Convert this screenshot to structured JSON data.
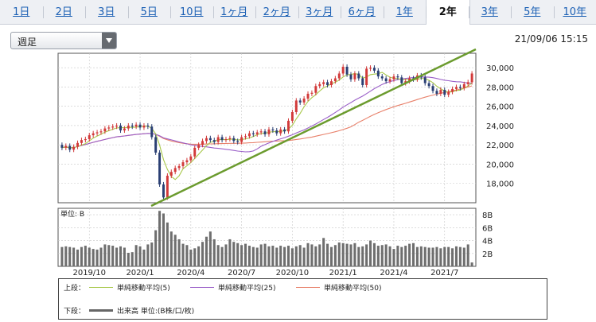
{
  "tabs": [
    {
      "label": "1日",
      "active": false
    },
    {
      "label": "2日",
      "active": false
    },
    {
      "label": "3日",
      "active": false
    },
    {
      "label": "5日",
      "active": false
    },
    {
      "label": "10日",
      "active": false
    },
    {
      "label": "1ヶ月",
      "active": false
    },
    {
      "label": "2ヶ月",
      "active": false
    },
    {
      "label": "3ヶ月",
      "active": false
    },
    {
      "label": "6ヶ月",
      "active": false
    },
    {
      "label": "1年",
      "active": false
    },
    {
      "label": "2年",
      "active": true
    },
    {
      "label": "3年",
      "active": false
    },
    {
      "label": "5年",
      "active": false
    },
    {
      "label": "10年",
      "active": false
    }
  ],
  "period_select": {
    "value": "週足"
  },
  "timestamp": "21/09/06 15:15",
  "legend": {
    "upper_label": "上段：",
    "lower_label": "下段：",
    "ma5_label": "単純移動平均(5)",
    "ma25_label": "単純移動平均(25)",
    "ma50_label": "単純移動平均(50)",
    "volume_label": "出来高 単位:(B株/口/枚)"
  },
  "colors": {
    "up": "#d23a3a",
    "down": "#2a3f73",
    "ma5": "#a8c84a",
    "ma25": "#9a5fc8",
    "ma50": "#e8806a",
    "trendline": "#6b9b2e",
    "volume": "#6e6e6e"
  },
  "chart_data": [
    {
      "type": "candlestick",
      "xlabel": "",
      "ylabel": "",
      "ylim": [
        16000,
        31500
      ],
      "yticks": [
        18000,
        20000,
        22000,
        24000,
        26000,
        28000,
        30000
      ],
      "ytick_labels": [
        "18,000",
        "20,000",
        "22,000",
        "24,000",
        "26,000",
        "28,000",
        "30,000"
      ],
      "xtick_labels": [
        "2019/10",
        "2020/1",
        "2020/4",
        "2020/7",
        "2020/10",
        "2021/1",
        "2021/4",
        "2021/7"
      ],
      "xtick_index": [
        7,
        20,
        33,
        46,
        59,
        72,
        85,
        98
      ],
      "close": [
        21700,
        21900,
        21500,
        21800,
        22200,
        22500,
        22600,
        23000,
        23200,
        23300,
        23400,
        23700,
        23800,
        23900,
        24000,
        23500,
        23700,
        24000,
        23900,
        24100,
        23800,
        24000,
        23900,
        22800,
        21200,
        17900,
        16550,
        18800,
        19200,
        19600,
        19800,
        20200,
        20400,
        20800,
        21700,
        22000,
        22400,
        22700,
        22500,
        22300,
        22800,
        22500,
        22600,
        22700,
        22400,
        22300,
        22800,
        22900,
        23200,
        23100,
        23300,
        23400,
        23100,
        23600,
        23500,
        23200,
        23600,
        23400,
        24500,
        25400,
        26600,
        26400,
        26800,
        27300,
        27400,
        28100,
        28300,
        28500,
        28200,
        28600,
        28900,
        29400,
        30100,
        29300,
        28800,
        29400,
        28900,
        28200,
        29900,
        30000,
        29700,
        29100,
        28900,
        28600,
        28800,
        29100,
        29000,
        28400,
        28600,
        28900,
        28800,
        29200,
        29000,
        28400,
        28100,
        27600,
        27300,
        27700,
        27200,
        27500,
        27800,
        28000,
        27900,
        28300,
        28500,
        29400
      ],
      "open": [
        22000,
        21700,
        21900,
        21500,
        21800,
        22200,
        22500,
        22600,
        23000,
        23200,
        23300,
        23400,
        23700,
        23800,
        23900,
        24000,
        23500,
        23700,
        24000,
        23900,
        24100,
        23800,
        24000,
        23900,
        22800,
        21200,
        17900,
        16550,
        18800,
        19200,
        19600,
        19800,
        20200,
        20400,
        20800,
        21700,
        22000,
        22400,
        22700,
        22500,
        22300,
        22800,
        22500,
        22600,
        22700,
        22400,
        22300,
        22800,
        22900,
        23200,
        23100,
        23300,
        23400,
        23100,
        23600,
        23500,
        23200,
        23600,
        23400,
        24500,
        25400,
        26600,
        26400,
        26800,
        27300,
        27400,
        28100,
        28300,
        28500,
        28200,
        28600,
        28900,
        29400,
        30100,
        29300,
        28800,
        29400,
        28900,
        28200,
        29900,
        30000,
        29700,
        29100,
        28900,
        28600,
        28800,
        29100,
        29000,
        28400,
        28600,
        28900,
        28800,
        29200,
        29000,
        28400,
        28100,
        27600,
        27300,
        27700,
        27200,
        27500,
        27800,
        28000,
        27900,
        28300,
        28500
      ],
      "ma_periods": [
        5,
        25,
        50
      ],
      "volume": {
        "ylim": [
          0,
          9
        ],
        "yticks": [
          2,
          4,
          6,
          8
        ],
        "ytick_labels": [
          "2B",
          "4B",
          "6B",
          "8B"
        ],
        "unit_label": "単位: B",
        "values": [
          3.0,
          3.1,
          3.0,
          2.9,
          2.6,
          3.0,
          3.2,
          2.9,
          2.7,
          2.6,
          2.9,
          3.4,
          3.3,
          3.2,
          2.9,
          3.1,
          2.9,
          2.1,
          2.2,
          3.3,
          3.1,
          2.6,
          3.4,
          3.7,
          5.6,
          8.6,
          8.2,
          6.8,
          5.4,
          4.9,
          4.2,
          3.5,
          3.3,
          2.6,
          2.8,
          3.1,
          3.8,
          4.6,
          5.4,
          4.2,
          3.3,
          3.0,
          3.4,
          4.2,
          3.8,
          3.6,
          3.3,
          3.5,
          3.2,
          3.0,
          2.9,
          3.4,
          3.5,
          3.1,
          3.2,
          2.9,
          3.2,
          3.0,
          3.2,
          2.8,
          3.1,
          3.3,
          2.9,
          3.6,
          3.4,
          3.1,
          3.4,
          4.4,
          3.5,
          3.0,
          3.3,
          3.7,
          3.6,
          3.5,
          3.4,
          3.6,
          3.0,
          3.1,
          3.4,
          4.0,
          3.6,
          3.2,
          3.3,
          3.4,
          3.1,
          2.7,
          3.2,
          3.0,
          3.2,
          3.5,
          3.6,
          3.0,
          3.1,
          3.0,
          2.9,
          2.9,
          3.0,
          2.8,
          3.0,
          3.0,
          2.8,
          3.1,
          3.0,
          2.9,
          3.4,
          0.6
        ]
      }
    }
  ]
}
